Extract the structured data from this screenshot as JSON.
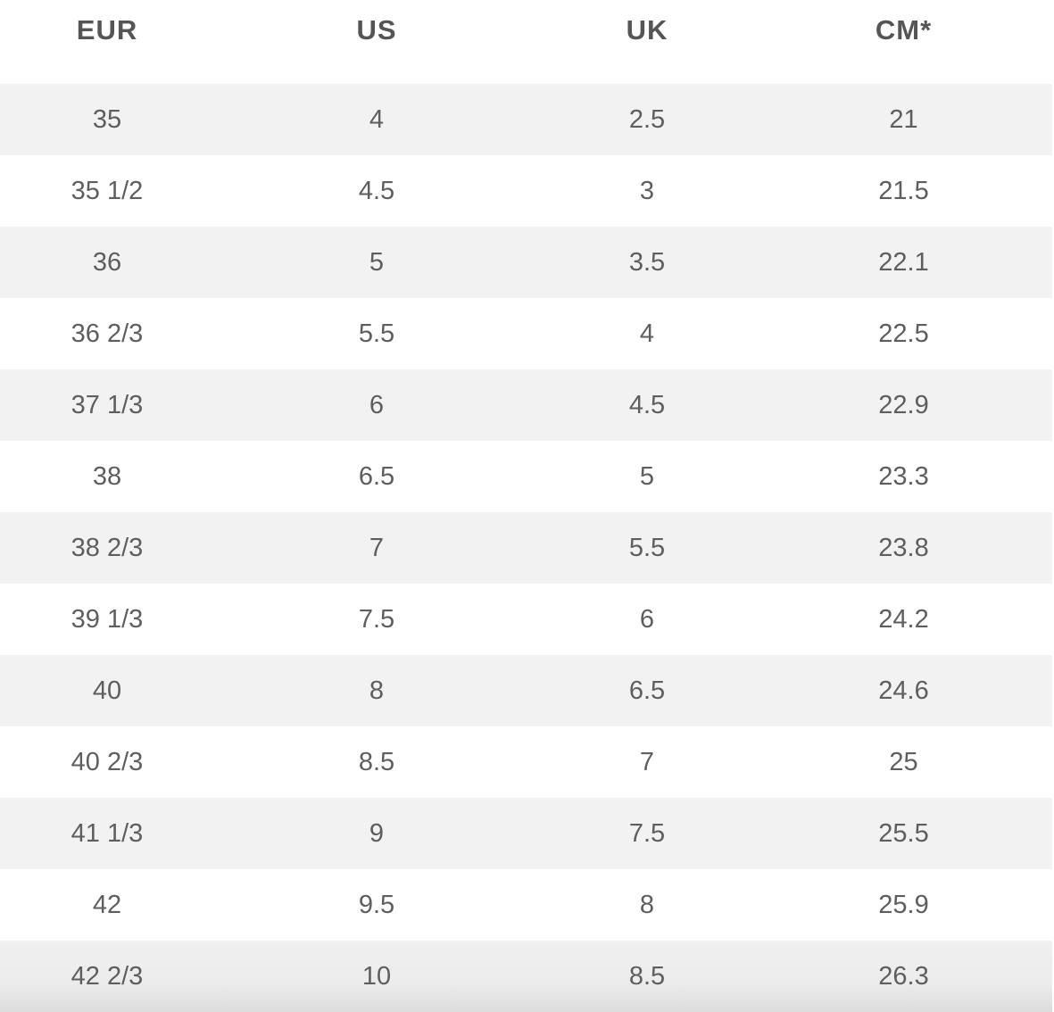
{
  "table": {
    "headers": [
      "EUR",
      "US",
      "UK",
      "CM*"
    ],
    "rows": [
      [
        "35",
        "4",
        "2.5",
        "21"
      ],
      [
        "35 1/2",
        "4.5",
        "3",
        "21.5"
      ],
      [
        "36",
        "5",
        "3.5",
        "22.1"
      ],
      [
        "36 2/3",
        "5.5",
        "4",
        "22.5"
      ],
      [
        "37 1/3",
        "6",
        "4.5",
        "22.9"
      ],
      [
        "38",
        "6.5",
        "5",
        "23.3"
      ],
      [
        "38 2/3",
        "7",
        "5.5",
        "23.8"
      ],
      [
        "39 1/3",
        "7.5",
        "6",
        "24.2"
      ],
      [
        "40",
        "8",
        "6.5",
        "24.6"
      ],
      [
        "40 2/3",
        "8.5",
        "7",
        "25"
      ],
      [
        "41 1/3",
        "9",
        "7.5",
        "25.5"
      ],
      [
        "42",
        "9.5",
        "8",
        "25.9"
      ],
      [
        "42 2/3",
        "10",
        "8.5",
        "26.3"
      ]
    ]
  },
  "colors": {
    "text": "#5e5e5e",
    "header_text": "#555555",
    "stripe": "#f2f2f2",
    "background": "#ffffff"
  }
}
